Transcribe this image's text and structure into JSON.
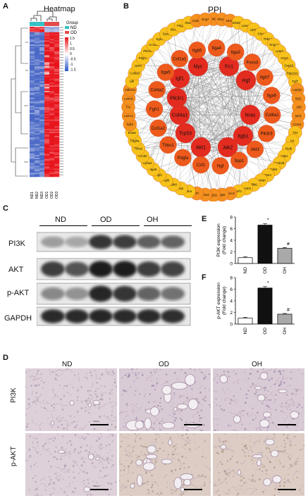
{
  "panels": {
    "a": {
      "letter": "A",
      "title": "Heatmap",
      "legend_title": "Group",
      "legend_items": [
        "ND",
        "OD"
      ],
      "scale_ticks": [
        "1.5",
        "1",
        "0.5",
        "0",
        "-0.5",
        "-1",
        "-1.5"
      ],
      "columns": [
        "ND1",
        "ND2",
        "ND3",
        "OD1",
        "OD2",
        "OD3"
      ],
      "colors": {
        "high": "#e8141c",
        "low": "#2b56c6",
        "mid": "#ffffff",
        "nd_group": "#35c2c5",
        "od_group": "#e34b4b"
      }
    },
    "b": {
      "letter": "B",
      "title": "PPI",
      "inner_nodes": [
        "Myc",
        "Fn1",
        "Igf1",
        "Hgf",
        "Pik3r1",
        "Col4a1",
        "Trp53",
        "Nras",
        "Akt1",
        "Jak2",
        "Itgb1"
      ],
      "middle_nodes": [
        "Itga4",
        "Itga3",
        "Foxo3",
        "Itgb7",
        "Itga9",
        "Col6a1",
        "Pik3r3",
        "Akt3",
        "Spp1",
        "Ngf",
        "Csf1",
        "Pdgfa",
        "Thbs1",
        "Col1a2",
        "Fgfr1",
        "Col4a2",
        "Itga5",
        "Col1a1",
        "Itgb5"
      ],
      "outer_nodes": [
        "Col6a2",
        "Pik3cd",
        "Nr4a1",
        "Eif4ebp1",
        "Lamc3",
        "Lpar6",
        "Grb4",
        "Thbs3",
        "Gng12",
        "Lpar3",
        "Gng2",
        "Gng10",
        "Ppp2r2c",
        "Fgf7",
        "Lamb2",
        "Bcl2",
        "Atf4",
        "Mcl1",
        "Ccne1",
        "Tlr4",
        "Kit",
        "Relb",
        "Gdpc",
        "Creb3l1",
        "Ddit4",
        "Osmr",
        "Ywhah",
        "Nfkb1",
        "Lamb3",
        "Csf1r",
        "Lamc2",
        "Itga6",
        "Fgf11",
        "Efna4",
        "Il7r",
        "Il6ra",
        "Syk",
        "Cdk6",
        "Fgf8",
        "Igf2",
        "Itga8",
        "Epha2",
        "Ccnd2",
        "Thbs2",
        "Pdgfra",
        "Efna5",
        "Sgk2",
        "Lamc4",
        "Tnc",
        "Lama2",
        "Cdkn1a",
        "Idh",
        "Col6a3",
        "Lpar1",
        "Pdgf4",
        "Pik3r6",
        "Ccnd1",
        "Sgk1",
        "Gys2",
        "Il3ra",
        "Pdgfd",
        "Ifnar2",
        "Col3a1",
        "Gng7"
      ],
      "colors": {
        "inner": "#e32b1f",
        "middle": "#ee5a1b",
        "outer1": "#f5911e",
        "outer2": "#f7c21a"
      }
    },
    "c": {
      "letter": "C",
      "groups": [
        "ND",
        "OD",
        "OH"
      ],
      "rows": [
        "PI3K",
        "AKT",
        "p-AKT",
        "GAPDH"
      ]
    },
    "e": {
      "letter": "E",
      "ylabel": "PI3K expression\n(Fold change)",
      "ylabel_line1": "PI3K expression",
      "ylabel_line2": "(Fold change)",
      "significance": [
        "*",
        "#"
      ]
    },
    "f": {
      "letter": "F",
      "ylabel_line1": "p-AKT expression",
      "ylabel_line2": "(Fold change)",
      "significance": [
        "*",
        "#"
      ]
    },
    "d": {
      "letter": "D",
      "columns": [
        "ND",
        "OD",
        "OH"
      ],
      "rows": [
        "PI3K",
        "p-AKT"
      ],
      "scale_bar_label": "100μm"
    }
  },
  "chart_data": [
    {
      "id": "E",
      "type": "bar",
      "categories": [
        "ND",
        "OD",
        "OH"
      ],
      "values": [
        1.0,
        6.6,
        2.6
      ],
      "errors": [
        0.15,
        0.25,
        0.15
      ],
      "ylabel": "PI3K expression (Fold change)",
      "ylim": [
        0,
        8
      ],
      "yticks": [
        0,
        2,
        4,
        6,
        8
      ],
      "bar_colors": [
        "#ffffff",
        "#111111",
        "#a9a9a9"
      ],
      "annotations": [
        {
          "category": "OD",
          "text": "*"
        },
        {
          "category": "OH",
          "text": "#"
        }
      ]
    },
    {
      "id": "F",
      "type": "bar",
      "categories": [
        "ND",
        "OD",
        "OH"
      ],
      "values": [
        1.0,
        6.2,
        1.7
      ],
      "errors": [
        0.15,
        0.25,
        0.12
      ],
      "ylabel": "p-AKT expression (Fold change)",
      "ylim": [
        0,
        8
      ],
      "yticks": [
        0,
        2,
        4,
        6,
        8
      ],
      "bar_colors": [
        "#ffffff",
        "#111111",
        "#a9a9a9"
      ],
      "annotations": [
        {
          "category": "OD",
          "text": "*"
        },
        {
          "category": "OH",
          "text": "#"
        }
      ]
    }
  ]
}
